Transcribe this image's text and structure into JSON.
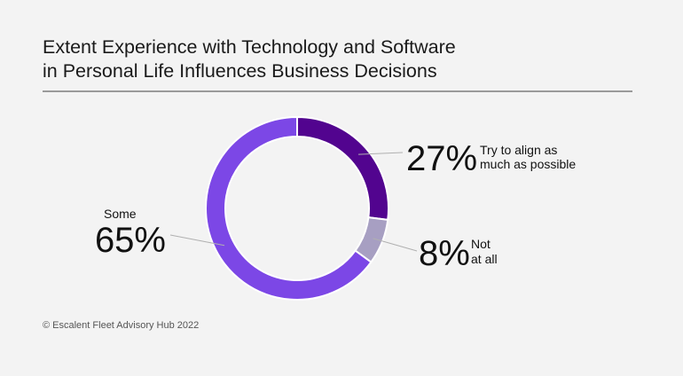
{
  "title": {
    "line1": "Extent Experience with Technology and Software",
    "line2": "in Personal Life Influences Business Decisions"
  },
  "footer": "© Escalent Fleet Advisory Hub 2022",
  "colors": {
    "background": "#f3f3f3",
    "rule": "#9a9a9a",
    "leader": "#b0b0b0"
  },
  "chart_data": {
    "type": "pie",
    "variant": "donut",
    "slices": [
      {
        "label": "Try to align as much as possible",
        "label_lines": [
          "Try to align as",
          "much as possible"
        ],
        "value": 27,
        "display": "27%",
        "color": "#52048f"
      },
      {
        "label": "Not at all",
        "label_lines": [
          "Not",
          "at all"
        ],
        "value": 8,
        "display": "8%",
        "color": "#a79fc2"
      },
      {
        "label": "Some",
        "label_lines": [
          "Some"
        ],
        "value": 65,
        "display": "65%",
        "color": "#7c47e6"
      }
    ]
  }
}
